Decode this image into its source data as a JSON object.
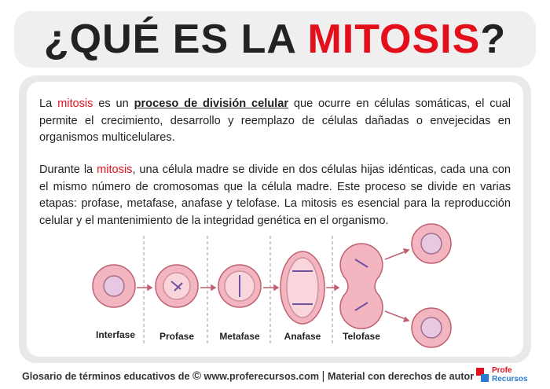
{
  "header": {
    "title_parts": [
      "¿QUÉ ES LA ",
      "MITOSIS",
      "?"
    ]
  },
  "paragraphs": [
    {
      "segments": [
        "La ",
        "mitosis",
        " es un ",
        "proceso de división celular",
        " que ocurre en células somáticas, el cual permite el crecimiento, desarrollo y reemplazo de células dañadas o envejecidas en organismos multicelulares."
      ]
    },
    {
      "segments": [
        "Durante la ",
        "mitosis",
        ", una célula madre se divide en dos células hijas idénticas, cada una con el mismo número de cromosomas que la célula madre. Este proceso se divide en varias etapas: profase, metafase, anafase y telofase. La mitosis es esencial para la reproducción celular y el mantenimiento de la integridad genética en el organismo."
      ]
    }
  ],
  "diagram": {
    "phases": [
      "Interfase",
      "Profase",
      "Metafase",
      "Anafase",
      "Telofase"
    ]
  },
  "footer": {
    "glossary": "Glosario de términos educativos de",
    "copyright_symbol": "©",
    "website": "www.proferecursos.com",
    "separator": "|",
    "rights": "Material con derechos de autor",
    "logo": [
      "Profe",
      "Recursos"
    ]
  }
}
